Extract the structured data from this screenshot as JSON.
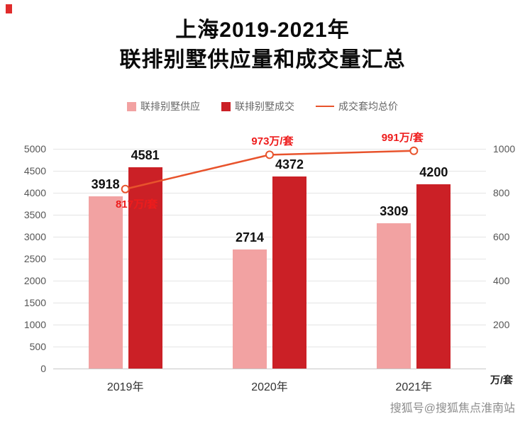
{
  "title": {
    "line1": "上海2019-2021年",
    "line2": "联排别墅供应量和成交量汇总"
  },
  "legend": [
    {
      "label": "联排别墅供应",
      "type": "square",
      "color": "#f2a2a2"
    },
    {
      "label": "联排别墅成交",
      "type": "square",
      "color": "#cb2026"
    },
    {
      "label": "成交套均总价",
      "type": "line",
      "color": "#e8532c"
    }
  ],
  "watermark": "搜狐号@搜狐焦点淮南站",
  "chart_data": {
    "type": "bar+line",
    "categories": [
      "2019年",
      "2020年",
      "2021年"
    ],
    "series": [
      {
        "name": "联排别墅供应",
        "type": "bar",
        "axis": "left",
        "color": "#f2a2a2",
        "values": [
          3918,
          2714,
          3309
        ]
      },
      {
        "name": "联排别墅成交",
        "type": "bar",
        "axis": "left",
        "color": "#cb2026",
        "values": [
          4581,
          4372,
          4200
        ]
      },
      {
        "name": "成交套均总价",
        "type": "line",
        "axis": "right",
        "color": "#e8532c",
        "label_color": "#ee1c1c",
        "values": [
          817,
          973,
          991
        ],
        "labels": [
          "817万/套",
          "973万/套",
          "991万/套"
        ]
      }
    ],
    "left_axis": {
      "min": 0,
      "max": 5000,
      "step": 500
    },
    "right_axis": {
      "min": 0,
      "max": 1000,
      "step": 200,
      "unit": "万/套"
    },
    "grid": true,
    "legend_position": "top"
  }
}
